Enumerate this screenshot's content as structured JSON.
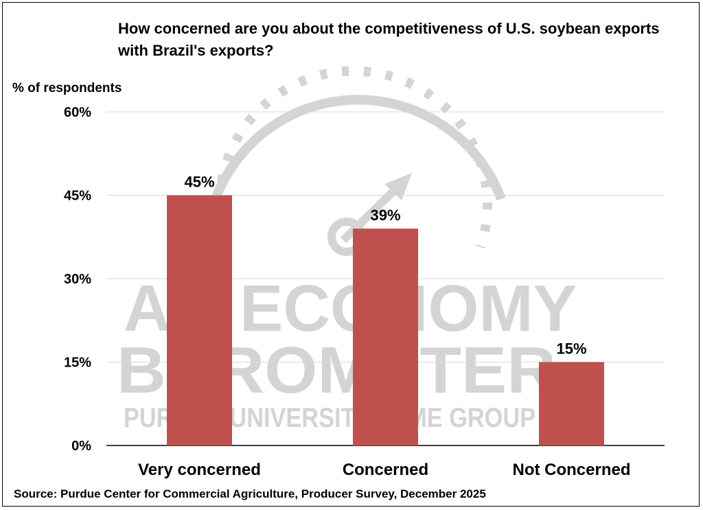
{
  "chart_data": {
    "type": "bar",
    "title": "How concerned are you about the competitiveness of U.S. soybean exports with Brazil's exports?",
    "ylabel": "% of respondents",
    "xlabel": "",
    "categories": [
      "Very concerned",
      "Concerned",
      "Not Concerned"
    ],
    "values": [
      45,
      39,
      15
    ],
    "data_labels": [
      "45%",
      "39%",
      "15%"
    ],
    "ylim": [
      0,
      60
    ],
    "yticks": [
      0,
      15,
      30,
      45,
      60
    ],
    "ytick_labels": [
      "0%",
      "15%",
      "30%",
      "45%",
      "60%"
    ],
    "grid": true,
    "legend": "none",
    "bar_color": "#C0504D",
    "gridline_color": "#D9D9D9"
  },
  "source": "Source: Purdue Center for Commercial Agriculture, Producer Survey, December 2025",
  "watermark": {
    "line1": "AG ECONOMY",
    "line2": "BAROMETER",
    "line3": "PURDUE UNIVERSITY | CME GROUP",
    "color": "#D4D4D4"
  }
}
